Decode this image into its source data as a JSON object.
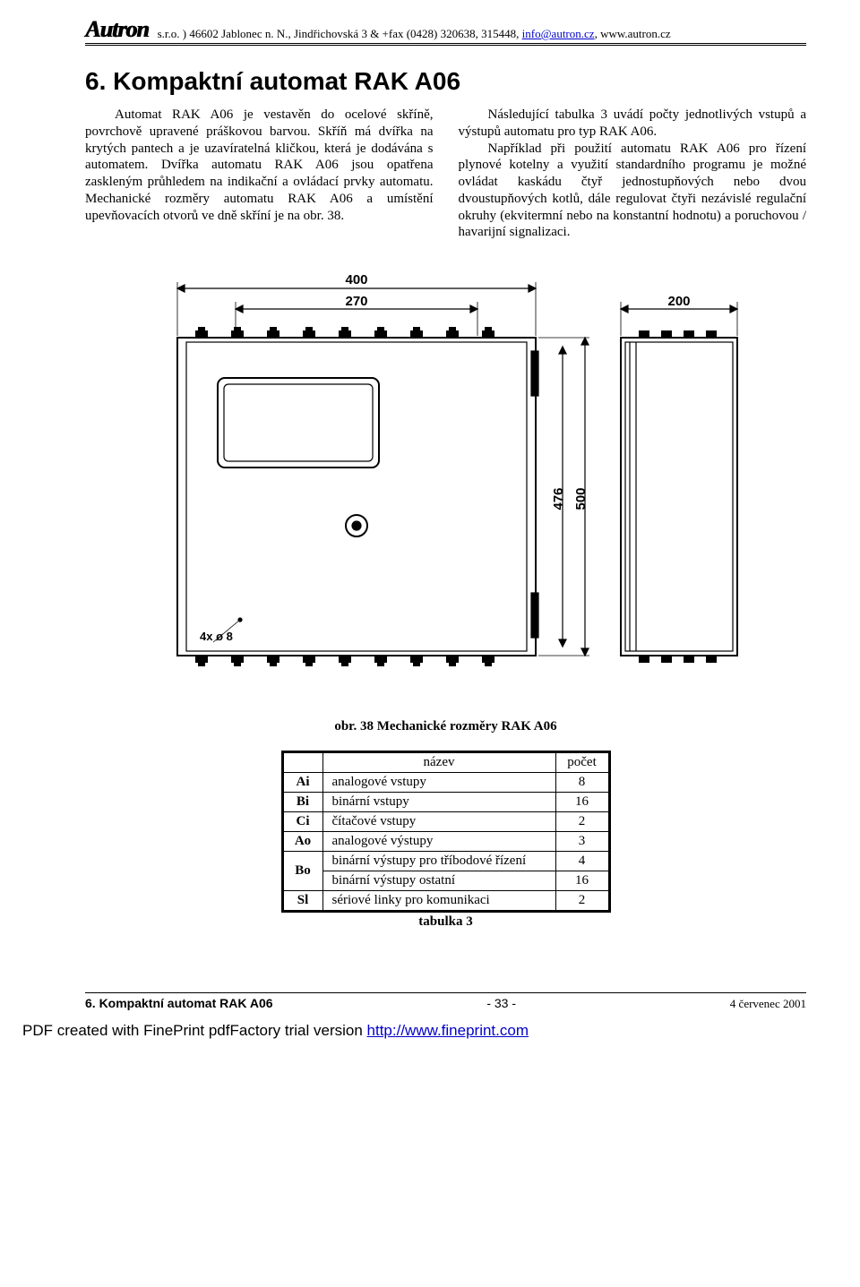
{
  "header": {
    "logo": "Autron",
    "address_prefix": "s.r.o. )  46602 Jablonec n. N., Jindřichovská  3 & +fax (0428) 320638, 315448, ",
    "email": "info@autron.cz",
    "address_suffix": ", www.autron.cz"
  },
  "title": "6. Kompaktní automat RAK A06",
  "col_left": "Automat RAK A06 je vestavěn do ocelové skříně, povrchově upravené práškovou barvou. Skříň má dvířka na krytých pantech a je uzavíratelná kličkou, která je dodávána s automatem. Dvířka automatu RAK A06 jsou opatřena zaskleným průhledem na indikační a ovládací prvky automatu. Mechanické rozměry automatu RAK A06 a umístění upevňovacích otvorů ve dně skříní je na obr. 38.",
  "col_right_p1": "Následující tabulka 3 uvádí počty jednotlivých vstupů a výstupů automatu pro typ RAK A06.",
  "col_right_p2": "Například při použití automatu RAK A06 pro řízení plynové kotelny a využití standardního programu je možné ovládat kaskádu čtyř jednostupňových nebo dvou dvoustupňových kotlů, dále regulovat čtyři nezávislé regulační okruhy (ekvitermní nebo na konstantní hodnotu) a poruchovou / havarijní signalizaci.",
  "figure": {
    "dims": {
      "w_outer": "400",
      "w_inner": "270",
      "depth": "200",
      "h_outer": "500",
      "h_inner": "476",
      "holes": "4x ø 8"
    },
    "caption": "obr. 38 Mechanické rozměry RAK A06",
    "stroke": "#000000",
    "fill": "#ffffff"
  },
  "table": {
    "header_name": "název",
    "header_count": "počet",
    "rows": [
      {
        "code": "Ai",
        "name": "analogové vstupy",
        "count": "8"
      },
      {
        "code": "Bi",
        "name": "binární vstupy",
        "count": "16"
      },
      {
        "code": "Ci",
        "name": "čítačové vstupy",
        "count": "2"
      },
      {
        "code": "Ao",
        "name": "analogové výstupy",
        "count": "3"
      },
      {
        "code": "Bo",
        "name": "binární výstupy pro tříbodové řízení",
        "count": "4",
        "rowspan_from_above": false,
        "rowspan": 2
      },
      {
        "code": "",
        "name": "binární výstupy ostatní",
        "count": "16",
        "merge_code": true
      },
      {
        "code": "Sl",
        "name": "sériové linky pro komunikaci",
        "count": "2"
      }
    ],
    "caption": "tabulka 3"
  },
  "footer": {
    "left": "6. Kompaktní automat RAK A06",
    "page": "- 33 -",
    "right": "4  červenec 2001"
  },
  "pdf_line_prefix": "PDF created with FinePrint pdfFactory trial version ",
  "pdf_link": "http://www.fineprint.com"
}
